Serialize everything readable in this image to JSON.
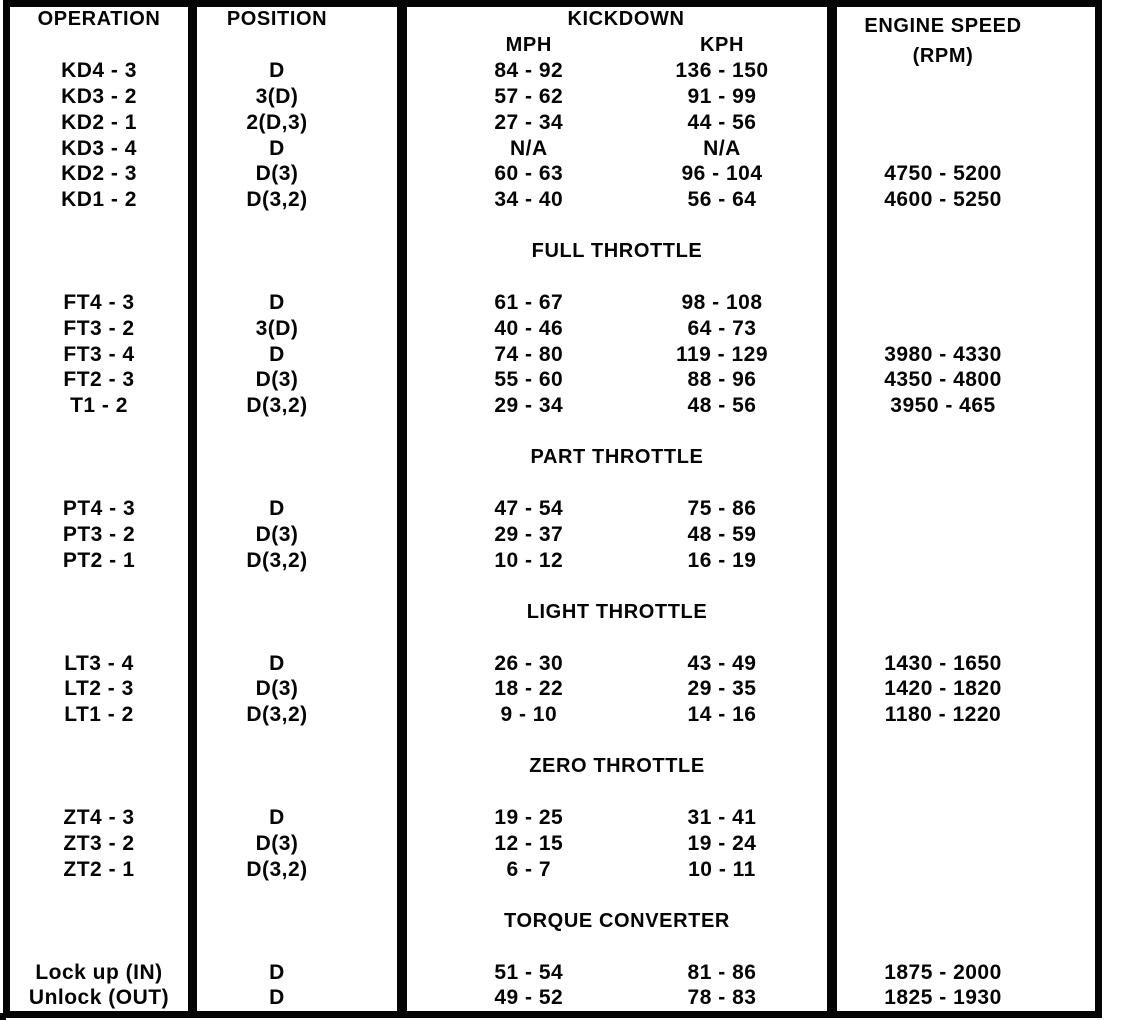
{
  "page": {
    "background": "#ffffff",
    "ink": "#050505"
  },
  "table": {
    "column_headers": {
      "operation": "OPERATION",
      "position": "POSITION",
      "kickdown": "KICKDOWN",
      "mph": "MPH",
      "kph": "KPH",
      "engine_speed": "ENGINE SPEED",
      "engine_speed_unit": "(RPM)"
    },
    "sections": [
      {
        "title": "",
        "rows": [
          {
            "operation": "KD4 - 3",
            "position": "D",
            "mph": "84 - 92",
            "kph": "136 - 150",
            "rpm": ""
          },
          {
            "operation": "KD3 - 2",
            "position": "3(D)",
            "mph": "57 - 62",
            "kph": "91 - 99",
            "rpm": ""
          },
          {
            "operation": "KD2 - 1",
            "position": "2(D,3)",
            "mph": "27 - 34",
            "kph": "44 - 56",
            "rpm": ""
          },
          {
            "operation": "KD3 - 4",
            "position": "D",
            "mph": "N/A",
            "kph": "N/A",
            "rpm": ""
          },
          {
            "operation": "KD2 - 3",
            "position": "D(3)",
            "mph": "60 - 63",
            "kph": "96 - 104",
            "rpm": "4750 - 5200"
          },
          {
            "operation": "KD1 - 2",
            "position": "D(3,2)",
            "mph": "34 - 40",
            "kph": "56 - 64",
            "rpm": "4600 - 5250"
          }
        ]
      },
      {
        "title": "FULL THROTTLE",
        "rows": [
          {
            "operation": "FT4 - 3",
            "position": "D",
            "mph": "61 - 67",
            "kph": "98 - 108",
            "rpm": ""
          },
          {
            "operation": "FT3 - 2",
            "position": "3(D)",
            "mph": "40 - 46",
            "kph": "64 - 73",
            "rpm": ""
          },
          {
            "operation": "FT3 - 4",
            "position": "D",
            "mph": "74 - 80",
            "kph": "119 - 129",
            "rpm": "3980 - 4330"
          },
          {
            "operation": "FT2 - 3",
            "position": "D(3)",
            "mph": "55 - 60",
            "kph": "88 - 96",
            "rpm": "4350 - 4800"
          },
          {
            "operation": "T1 - 2",
            "position": "D(3,2)",
            "mph": "29 - 34",
            "kph": "48 - 56",
            "rpm": "3950 - 465"
          }
        ]
      },
      {
        "title": "PART THROTTLE",
        "rows": [
          {
            "operation": "PT4 - 3",
            "position": "D",
            "mph": "47 - 54",
            "kph": "75 - 86",
            "rpm": ""
          },
          {
            "operation": "PT3 - 2",
            "position": "D(3)",
            "mph": "29 - 37",
            "kph": "48 - 59",
            "rpm": ""
          },
          {
            "operation": "PT2 - 1",
            "position": "D(3,2)",
            "mph": "10 - 12",
            "kph": "16 - 19",
            "rpm": ""
          }
        ]
      },
      {
        "title": "LIGHT THROTTLE",
        "rows": [
          {
            "operation": "LT3 - 4",
            "position": "D",
            "mph": "26 - 30",
            "kph": "43 - 49",
            "rpm": "1430 - 1650"
          },
          {
            "operation": "LT2 - 3",
            "position": "D(3)",
            "mph": "18 - 22",
            "kph": "29 - 35",
            "rpm": "1420 - 1820"
          },
          {
            "operation": "LT1 - 2",
            "position": "D(3,2)",
            "mph": "9 - 10",
            "kph": "14 - 16",
            "rpm": "1180 - 1220"
          }
        ]
      },
      {
        "title": "ZERO THROTTLE",
        "rows": [
          {
            "operation": "ZT4 - 3",
            "position": "D",
            "mph": "19 - 25",
            "kph": "31 - 41",
            "rpm": ""
          },
          {
            "operation": "ZT3 - 2",
            "position": "D(3)",
            "mph": "12 - 15",
            "kph": "19 - 24",
            "rpm": ""
          },
          {
            "operation": "ZT2 - 1",
            "position": "D(3,2)",
            "mph": "6 - 7",
            "kph": "10 - 11",
            "rpm": ""
          }
        ]
      },
      {
        "title": "TORQUE CONVERTER",
        "rows": [
          {
            "operation": "Lock up (IN)",
            "position": "D",
            "mph": "51 - 54",
            "kph": "81 - 86",
            "rpm": "1875 - 2000"
          },
          {
            "operation": "Unlock (OUT)",
            "position": "D",
            "mph": "49 - 52",
            "kph": "78 - 83",
            "rpm": "1825 - 1930"
          }
        ]
      }
    ]
  }
}
